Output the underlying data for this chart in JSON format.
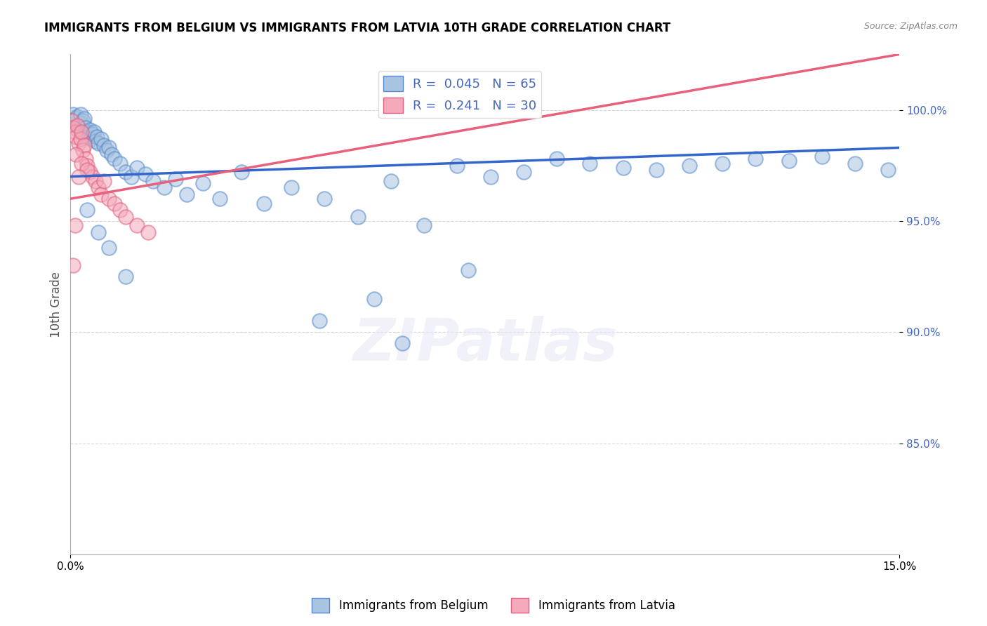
{
  "title": "IMMIGRANTS FROM BELGIUM VS IMMIGRANTS FROM LATVIA 10TH GRADE CORRELATION CHART",
  "source": "Source: ZipAtlas.com",
  "ylabel": "10th Grade",
  "xlim": [
    0.0,
    15.0
  ],
  "ylim": [
    80.0,
    102.5
  ],
  "yticks": [
    85.0,
    90.0,
    95.0,
    100.0
  ],
  "r_belgium": 0.045,
  "n_belgium": 65,
  "r_latvia": 0.241,
  "n_latvia": 30,
  "color_belgium": "#A8C4E0",
  "color_latvia": "#F4AABB",
  "edge_belgium": "#5588CC",
  "edge_latvia": "#E06080",
  "trendline_belgium": "#3366CC",
  "trendline_latvia": "#E8607A",
  "ytick_color": "#4466BB",
  "background_color": "#FFFFFF",
  "belgium_x": [
    0.05,
    0.08,
    0.1,
    0.12,
    0.15,
    0.18,
    0.2,
    0.22,
    0.25,
    0.28,
    0.3,
    0.33,
    0.35,
    0.38,
    0.4,
    0.43,
    0.45,
    0.48,
    0.5,
    0.55,
    0.6,
    0.65,
    0.7,
    0.75,
    0.8,
    0.9,
    1.0,
    1.1,
    1.2,
    1.35,
    1.5,
    1.7,
    1.9,
    2.1,
    2.4,
    2.7,
    3.1,
    3.5,
    4.0,
    4.6,
    5.2,
    5.8,
    6.4,
    7.0,
    7.6,
    8.2,
    8.8,
    9.4,
    10.0,
    10.6,
    11.2,
    11.8,
    12.4,
    13.0,
    13.6,
    14.2,
    0.3,
    0.5,
    0.7,
    1.0,
    5.5,
    7.2,
    4.5,
    6.0,
    14.8
  ],
  "belgium_y": [
    99.8,
    99.5,
    99.6,
    99.7,
    99.3,
    99.8,
    99.4,
    99.5,
    99.6,
    99.2,
    99.0,
    98.8,
    99.1,
    98.7,
    98.9,
    99.0,
    98.6,
    98.8,
    98.5,
    98.7,
    98.4,
    98.2,
    98.3,
    98.0,
    97.8,
    97.6,
    97.2,
    97.0,
    97.4,
    97.1,
    96.8,
    96.5,
    96.9,
    96.2,
    96.7,
    96.0,
    97.2,
    95.8,
    96.5,
    96.0,
    95.2,
    96.8,
    94.8,
    97.5,
    97.0,
    97.2,
    97.8,
    97.6,
    97.4,
    97.3,
    97.5,
    97.6,
    97.8,
    97.7,
    97.9,
    97.6,
    95.5,
    94.5,
    93.8,
    92.5,
    91.5,
    92.8,
    90.5,
    89.5,
    97.3
  ],
  "latvia_x": [
    0.02,
    0.05,
    0.08,
    0.1,
    0.12,
    0.15,
    0.18,
    0.2,
    0.22,
    0.25,
    0.28,
    0.3,
    0.35,
    0.4,
    0.45,
    0.5,
    0.55,
    0.6,
    0.7,
    0.8,
    0.9,
    1.0,
    1.2,
    1.4,
    0.1,
    0.2,
    0.3,
    0.08,
    0.15,
    0.05
  ],
  "latvia_y": [
    99.5,
    99.2,
    99.0,
    98.8,
    99.3,
    98.5,
    98.7,
    99.0,
    98.2,
    98.4,
    97.8,
    97.5,
    97.2,
    97.0,
    96.8,
    96.5,
    96.2,
    96.8,
    96.0,
    95.8,
    95.5,
    95.2,
    94.8,
    94.5,
    98.0,
    97.6,
    97.3,
    94.8,
    97.0,
    93.0
  ],
  "legend_r_label1": "R =  0.045   N = 65",
  "legend_r_label2": "R =  0.241   N = 30",
  "legend_bottom_label1": "Immigrants from Belgium",
  "legend_bottom_label2": "Immigrants from Latvia"
}
